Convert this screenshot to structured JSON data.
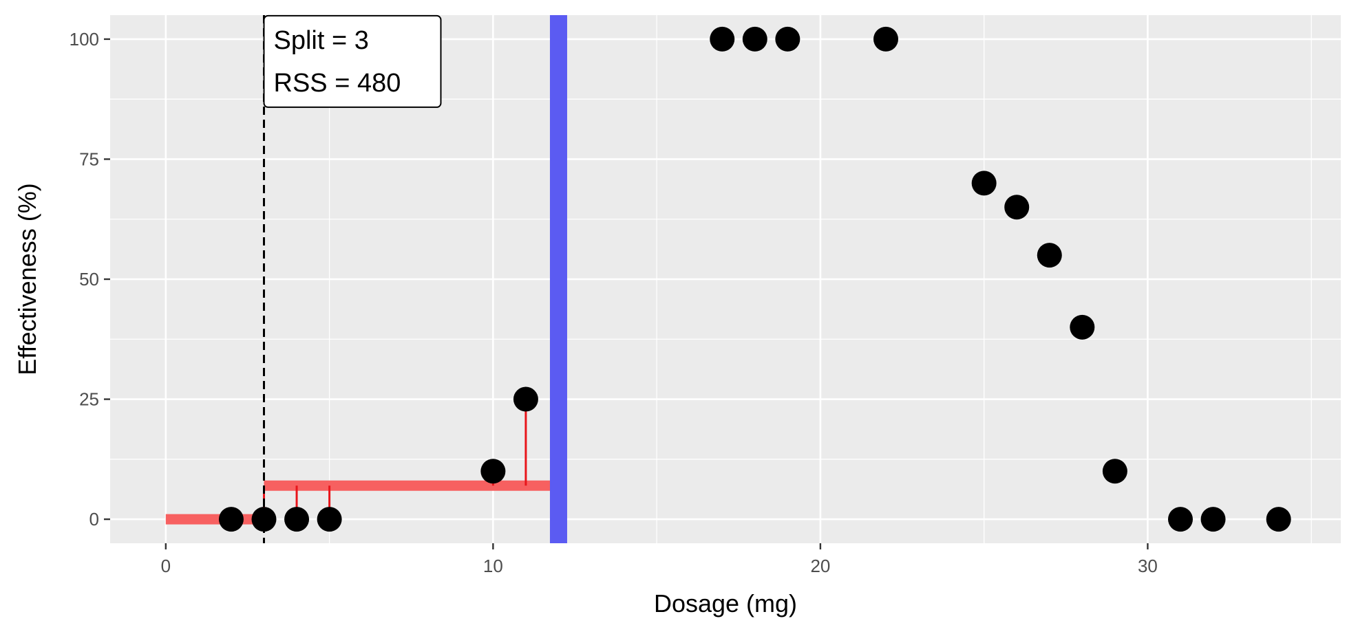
{
  "chart_data": {
    "type": "scatter",
    "title": "",
    "xlabel": "Dosage (mg)",
    "ylabel": "Effectiveness (%)",
    "xlim": [
      -1.7,
      35.9
    ],
    "ylim": [
      -5,
      105
    ],
    "x_ticks": [
      0,
      10,
      20,
      30
    ],
    "y_ticks": [
      0,
      25,
      50,
      75,
      100
    ],
    "grid": true,
    "legend": "none",
    "points": [
      {
        "x": 2,
        "y": 0
      },
      {
        "x": 3,
        "y": 0
      },
      {
        "x": 4,
        "y": 0
      },
      {
        "x": 5,
        "y": 0
      },
      {
        "x": 10,
        "y": 10
      },
      {
        "x": 11,
        "y": 25
      },
      {
        "x": 17,
        "y": 100
      },
      {
        "x": 18,
        "y": 100
      },
      {
        "x": 19,
        "y": 100
      },
      {
        "x": 22,
        "y": 100
      },
      {
        "x": 25,
        "y": 70
      },
      {
        "x": 26,
        "y": 65
      },
      {
        "x": 27,
        "y": 55
      },
      {
        "x": 28,
        "y": 40
      },
      {
        "x": 29,
        "y": 10
      },
      {
        "x": 31,
        "y": 0
      },
      {
        "x": 32,
        "y": 0
      },
      {
        "x": 34,
        "y": 0
      }
    ],
    "split_line": {
      "x": 3,
      "style": "dashed"
    },
    "region_line": {
      "x": 12,
      "color": "#5b5bf2"
    },
    "step_fit": [
      {
        "x_start": 0,
        "x_end": 3,
        "y": 0
      },
      {
        "x_start": 3,
        "x_end": 12,
        "y": 7
      }
    ],
    "residuals": [
      {
        "x": 4,
        "y": 0,
        "fit": 7
      },
      {
        "x": 5,
        "y": 0,
        "fit": 7
      },
      {
        "x": 10,
        "y": 10,
        "fit": 7
      },
      {
        "x": 11,
        "y": 25,
        "fit": 7
      }
    ],
    "annotation": {
      "line1": "Split = 3",
      "line2": "RSS = 480",
      "x": 3,
      "y": 100
    },
    "colors": {
      "panel": "#ebebeb",
      "grid": "#ffffff",
      "point": "#000000",
      "fit": "#f76060",
      "residual": "#e8151b",
      "region": "#5b5bf2"
    }
  }
}
